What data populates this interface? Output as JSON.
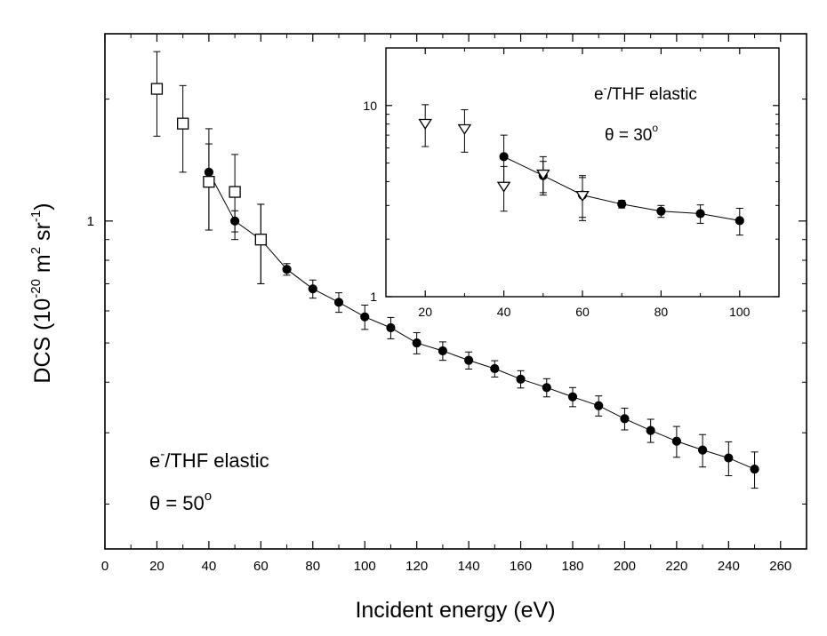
{
  "chart_data": [
    {
      "type": "scatter",
      "xlabel": "Incident energy (eV)",
      "ylabel": {
        "base": "DCS (10",
        "exp1": "-20",
        "mid": " m",
        "exp2": "2",
        "mid2": " sr",
        "exp3": "-1",
        "end": ")"
      },
      "x_ticks": [
        "0",
        "20",
        "40",
        "60",
        "80",
        "100",
        "120",
        "140",
        "160",
        "180",
        "200",
        "220",
        "240",
        "260"
      ],
      "xlim": [
        0,
        270
      ],
      "y_scale": "log",
      "ylim": [
        0.155,
        2.9
      ],
      "y_tick_labels": [
        {
          "value": 1,
          "label": "1"
        }
      ],
      "annotation": {
        "base": "e",
        "sup": "-",
        "rest": "/THF elastic",
        "angle_prefix": "θ = 50",
        "angle_sup": "o"
      },
      "series": [
        {
          "marker": "filled-circle",
          "connected": true,
          "x": [
            40,
            50,
            60,
            70,
            80,
            90,
            100,
            110,
            120,
            130,
            140,
            150,
            160,
            170,
            180,
            190,
            200,
            210,
            220,
            230,
            240,
            250
          ],
          "y": [
            1.32,
            1.0,
            0.9,
            0.76,
            0.68,
            0.63,
            0.58,
            0.545,
            0.5,
            0.478,
            0.453,
            0.432,
            0.407,
            0.388,
            0.368,
            0.35,
            0.325,
            0.304,
            0.286,
            0.272,
            0.26,
            0.244
          ],
          "err": [
            0.37,
            0.06,
            0.2,
            0.025,
            0.035,
            0.035,
            0.04,
            0.033,
            0.03,
            0.025,
            0.022,
            0.02,
            0.02,
            0.02,
            0.02,
            0.02,
            0.02,
            0.02,
            0.025,
            0.025,
            0.025,
            0.025
          ]
        },
        {
          "marker": "open-square",
          "connected": false,
          "x": [
            20,
            30,
            40,
            50,
            60
          ],
          "y": [
            2.12,
            1.74,
            1.25,
            1.18,
            0.9
          ],
          "err": [
            0.5,
            0.42,
            0.3,
            0.28,
            0.2
          ]
        }
      ]
    },
    {
      "type": "scatter",
      "inset": true,
      "x_ticks": [
        "20",
        "40",
        "60",
        "80",
        "100"
      ],
      "xlim": [
        10,
        110
      ],
      "y_scale": "log",
      "ylim": [
        1,
        20
      ],
      "y_tick_labels": [
        {
          "value": 1,
          "label": "1"
        },
        {
          "value": 10,
          "label": "10"
        }
      ],
      "annotation": {
        "base": "e",
        "sup": "-",
        "rest": "/THF elastic",
        "angle_prefix": "θ = 30",
        "angle_sup": "o"
      },
      "series": [
        {
          "marker": "filled-circle",
          "connected": true,
          "x": [
            40,
            50,
            60,
            70,
            80,
            90,
            100
          ],
          "y": [
            5.4,
            4.3,
            3.4,
            3.05,
            2.8,
            2.72,
            2.5
          ],
          "err": [
            1.6,
            0.8,
            0.9,
            0.14,
            0.2,
            0.3,
            0.4
          ]
        },
        {
          "marker": "open-triangle-down",
          "connected": false,
          "x": [
            20,
            30,
            40,
            50,
            60
          ],
          "y": [
            8.1,
            7.6,
            3.8,
            4.4,
            3.4
          ],
          "err": [
            2.0,
            1.9,
            1.0,
            1.0,
            0.8
          ]
        }
      ]
    }
  ]
}
